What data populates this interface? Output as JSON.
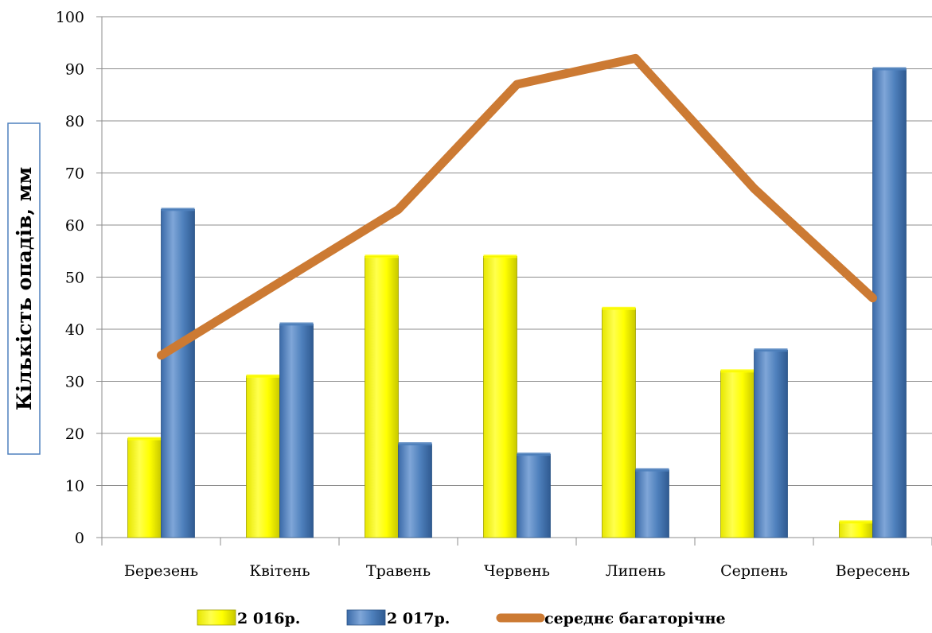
{
  "chart_data": {
    "type": "bar",
    "ylabel": "Кількість опадів, мм",
    "xlabel": "",
    "title": "",
    "ylim": [
      0,
      100
    ],
    "yticks": [
      0,
      10,
      20,
      30,
      40,
      50,
      60,
      70,
      80,
      90,
      100
    ],
    "grid": true,
    "legend_position": "bottom",
    "categories": [
      "Березень",
      "Квітень",
      "Травень",
      "Червень",
      "Липень",
      "Серпень",
      "Вересень"
    ],
    "series": [
      {
        "name": "2 016р.",
        "kind": "bar",
        "color": "#ffff00",
        "values": [
          19,
          31,
          54,
          54,
          44,
          32,
          3
        ]
      },
      {
        "name": "2 017р.",
        "kind": "bar",
        "color": "#4f81bd",
        "values": [
          63,
          41,
          18,
          16,
          13,
          36,
          90
        ]
      },
      {
        "name": "середнє багаторічне",
        "kind": "line",
        "color": "#cc7a33",
        "values": [
          35,
          49,
          63,
          87,
          92,
          67,
          46
        ]
      }
    ]
  }
}
